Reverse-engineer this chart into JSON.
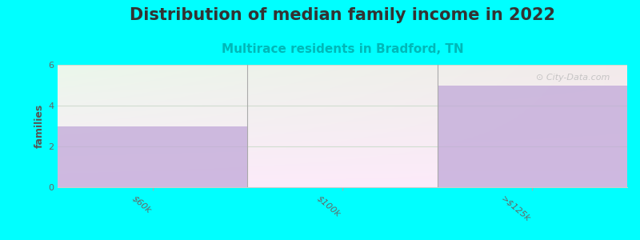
{
  "title": "Distribution of median family income in 2022",
  "subtitle": "Multirace residents in Bradford, TN",
  "categories": [
    "$60k",
    "$100k",
    ">$125k"
  ],
  "values": [
    3,
    0,
    5
  ],
  "bar_color": "#c0a8d8",
  "bar_alpha": 0.75,
  "bg_color": "#00ffff",
  "plot_bg_top": "#f0f8f0",
  "plot_bg_bottom": "#e8f5e0",
  "title_fontsize": 15,
  "subtitle_fontsize": 11,
  "subtitle_color": "#00b8b8",
  "ylabel": "families",
  "ylabel_fontsize": 9,
  "ylim": [
    0,
    6
  ],
  "yticks": [
    0,
    2,
    4,
    6
  ],
  "watermark": "City-Data.com",
  "grid_color": "#d0ddd0"
}
